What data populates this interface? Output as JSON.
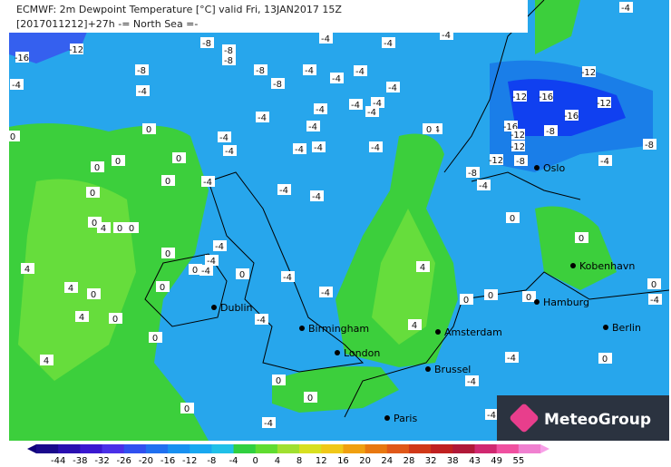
{
  "header": {
    "title": "ECMWF: 2m Dewpoint Temperature [°C] valid Fri, 13JAN2017 15Z",
    "subtitle": "[2017011212]+27h -= North Sea =-"
  },
  "cities": [
    "Oslo",
    "Kobenhavn",
    "Hamburg",
    "Berlin",
    "Dublin",
    "Birmingham",
    "London",
    "Amsterdam",
    "Brussel",
    "Paris"
  ],
  "logo": "MeteoGroup",
  "colorbar": {
    "ticks": [
      -44,
      -38,
      -32,
      -26,
      -20,
      -16,
      -12,
      -8,
      -4,
      0,
      4,
      8,
      12,
      16,
      20,
      24,
      28,
      32,
      38,
      43,
      49,
      55
    ]
  },
  "contour_labels": [
    "-16",
    "-12",
    "-8",
    "-8",
    "-8",
    "-4",
    "-4",
    "-4",
    "-8",
    "-8",
    "-4",
    "-4",
    "-4",
    "-8",
    "-4",
    "-4",
    "-4",
    "-4",
    "-4",
    "-4",
    "-4",
    "-4",
    "-4",
    "-4",
    "0",
    "0",
    "-4",
    "-4",
    "-4",
    "-4",
    "-4",
    "0",
    "-12",
    "-12",
    "-16",
    "-12",
    "-16",
    "-12",
    "-12",
    "-12",
    "-8",
    "-8",
    "-16",
    "-8",
    "-4",
    "-8",
    "-4",
    "0",
    "0",
    "0",
    "0",
    "0",
    "-4",
    "-4",
    "-4",
    "0",
    "4",
    "0",
    "0",
    "0",
    "-4",
    "-4",
    "0",
    "-4",
    "0",
    "-4",
    "0",
    "4",
    "-4",
    "4",
    "0",
    "0",
    "4",
    "-4",
    "0",
    "4",
    "4",
    "0",
    "0",
    "0",
    "0",
    "0",
    "0",
    "0",
    "-4",
    "0",
    "-4",
    "0",
    "0",
    "-4",
    "-4",
    "-4",
    "4",
    "-4"
  ]
}
